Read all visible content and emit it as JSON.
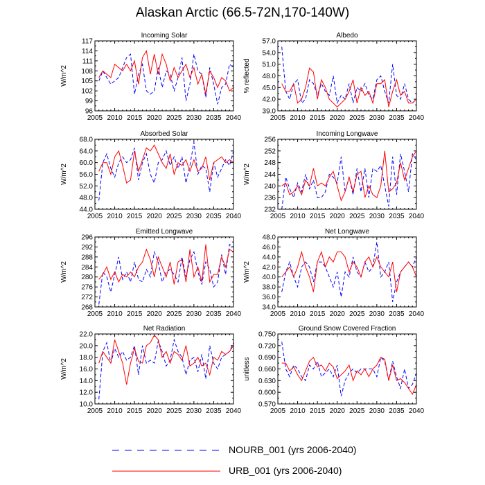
{
  "title": "Alaskan Arctic (66.5-72N,170-140W)",
  "legend": [
    {
      "name": "NOURB_001 (yrs 2006-2040)",
      "color": "#0000ff",
      "style": "dashed"
    },
    {
      "name": "URB_001 (yrs 2006-2040)",
      "color": "#ff0000",
      "style": "solid"
    }
  ],
  "chart_data": [
    {
      "type": "line",
      "title": "Incoming Solar",
      "ylabel": "W/m^2",
      "xlim": [
        2005,
        2040
      ],
      "ylim": [
        96,
        117
      ],
      "xticks": [
        "2005",
        "2010",
        "2015",
        "2020",
        "2025",
        "2030",
        "2035",
        "2040"
      ],
      "yticks": [
        "96",
        "99",
        "102",
        "105",
        "108",
        "111",
        "114",
        "117"
      ],
      "x": [
        2006,
        2007,
        2008,
        2009,
        2010,
        2011,
        2012,
        2013,
        2014,
        2015,
        2016,
        2017,
        2018,
        2019,
        2020,
        2021,
        2022,
        2023,
        2024,
        2025,
        2026,
        2027,
        2028,
        2029,
        2030,
        2031,
        2032,
        2033,
        2034,
        2035,
        2036,
        2037,
        2038,
        2039,
        2040
      ],
      "series": [
        {
          "name": "NOURB_001",
          "values": [
            105,
            108,
            106,
            104,
            105,
            106,
            109,
            112,
            113,
            101,
            107,
            110,
            102,
            101,
            102,
            109,
            103,
            108,
            107,
            102,
            106,
            112,
            99,
            104,
            113,
            108,
            107,
            100,
            109,
            104,
            98,
            103,
            104,
            110,
            109
          ]
        },
        {
          "name": "URB_001",
          "values": [
            106,
            108,
            107,
            106,
            110,
            109,
            108,
            110,
            108,
            111,
            104,
            112,
            114,
            107,
            113,
            107,
            113,
            110,
            105,
            109,
            106,
            108,
            110,
            106,
            109,
            104,
            107,
            101,
            108,
            106,
            103,
            106,
            105,
            102,
            103
          ]
        }
      ]
    },
    {
      "type": "line",
      "title": "Albedo",
      "ylabel": "% reflected",
      "xlim": [
        2005,
        2040
      ],
      "ylim": [
        39,
        57
      ],
      "xticks": [
        "2005",
        "2010",
        "2015",
        "2020",
        "2025",
        "2030",
        "2035",
        "2040"
      ],
      "yticks": [
        "39.0",
        "42.0",
        "45.0",
        "48.0",
        "51.0",
        "54.0",
        "57.0"
      ],
      "x": [
        2006,
        2007,
        2008,
        2009,
        2010,
        2011,
        2012,
        2013,
        2014,
        2015,
        2016,
        2017,
        2018,
        2019,
        2020,
        2021,
        2022,
        2023,
        2024,
        2025,
        2026,
        2027,
        2028,
        2029,
        2030,
        2031,
        2032,
        2033,
        2034,
        2035,
        2036,
        2037,
        2038,
        2039,
        2040
      ],
      "series": [
        {
          "name": "NOURB_001",
          "values": [
            55.5,
            44,
            42,
            46,
            47,
            41,
            42,
            47,
            46,
            43,
            46,
            44,
            43,
            48,
            41,
            43,
            42,
            46,
            41,
            45,
            44,
            46,
            43,
            42,
            47,
            48,
            44,
            41,
            51,
            43,
            42,
            46,
            42,
            41,
            42
          ]
        },
        {
          "name": "URB_001",
          "values": [
            46,
            44,
            44,
            46,
            41,
            42,
            45,
            50,
            49,
            42,
            47,
            45,
            42,
            41,
            40,
            41,
            42,
            44,
            47,
            41,
            45,
            43,
            44,
            41,
            46,
            46,
            47,
            40,
            44,
            47,
            43,
            44,
            41,
            41,
            42
          ]
        }
      ]
    },
    {
      "type": "line",
      "title": "Absorbed Solar",
      "ylabel": "W/m^2",
      "xlim": [
        2005,
        2040
      ],
      "ylim": [
        44,
        68
      ],
      "xticks": [
        "2005",
        "2010",
        "2015",
        "2020",
        "2025",
        "2030",
        "2035",
        "2040"
      ],
      "yticks": [
        "44.0",
        "48.0",
        "52.0",
        "56.0",
        "60.0",
        "64.0",
        "68.0"
      ],
      "x": [
        2006,
        2007,
        2008,
        2009,
        2010,
        2011,
        2012,
        2013,
        2014,
        2015,
        2016,
        2017,
        2018,
        2019,
        2020,
        2021,
        2022,
        2023,
        2024,
        2025,
        2026,
        2027,
        2028,
        2029,
        2030,
        2031,
        2032,
        2033,
        2034,
        2035,
        2036,
        2037,
        2038,
        2039,
        2040
      ],
      "series": [
        {
          "name": "NOURB_001",
          "values": [
            47,
            60,
            63,
            58,
            55,
            60,
            62,
            60,
            61,
            65,
            54,
            60,
            63,
            56,
            53,
            60,
            61,
            64,
            59,
            62,
            58,
            62,
            53,
            59,
            67,
            56,
            59,
            58,
            50,
            60,
            55,
            58,
            61,
            59,
            64
          ]
        },
        {
          "name": "URB_001",
          "values": [
            57,
            60,
            60,
            56,
            62,
            64,
            59,
            53,
            54,
            64,
            57,
            61,
            65,
            64,
            66,
            63,
            60,
            58,
            63,
            56,
            60,
            59,
            61,
            57,
            61,
            57,
            58,
            62,
            54,
            60,
            61,
            62,
            60,
            61,
            60
          ]
        }
      ]
    },
    {
      "type": "line",
      "title": "Incoming Longwave",
      "ylabel": "W/m^2",
      "xlim": [
        2005,
        2040
      ],
      "ylim": [
        232,
        256
      ],
      "xticks": [
        "2005",
        "2010",
        "2015",
        "2020",
        "2025",
        "2030",
        "2035",
        "2040"
      ],
      "yticks": [
        "232",
        "236",
        "240",
        "244",
        "248",
        "252",
        "256"
      ],
      "x": [
        2006,
        2007,
        2008,
        2009,
        2010,
        2011,
        2012,
        2013,
        2014,
        2015,
        2016,
        2017,
        2018,
        2019,
        2020,
        2021,
        2022,
        2023,
        2024,
        2025,
        2026,
        2027,
        2028,
        2029,
        2030,
        2031,
        2032,
        2033,
        2034,
        2035,
        2036,
        2037,
        2038,
        2039,
        2040
      ],
      "series": [
        {
          "name": "NOURB_001",
          "values": [
            232,
            243,
            239,
            236,
            241,
            238,
            244,
            239,
            242,
            236,
            236,
            238,
            244,
            243,
            241,
            250,
            238,
            243,
            237,
            246,
            238,
            246,
            236,
            246,
            245,
            247,
            240,
            233,
            250,
            237,
            251,
            245,
            238,
            251,
            249
          ]
        },
        {
          "name": "URB_001",
          "values": [
            240,
            241,
            237,
            238,
            240,
            237,
            242,
            240,
            246,
            240,
            241,
            240,
            243,
            245,
            240,
            235,
            238,
            243,
            238,
            244,
            245,
            236,
            240,
            237,
            236,
            240,
            252,
            238,
            239,
            241,
            248,
            242,
            246,
            250,
            252
          ]
        }
      ]
    },
    {
      "type": "line",
      "title": "Emitted Longwave",
      "ylabel": "W/m^2",
      "xlim": [
        2005,
        2040
      ],
      "ylim": [
        268,
        296
      ],
      "xticks": [
        "2005",
        "2010",
        "2015",
        "2020",
        "2025",
        "2030",
        "2035",
        "2040"
      ],
      "yticks": [
        "268",
        "272",
        "276",
        "280",
        "284",
        "288",
        "292",
        "296"
      ],
      "x": [
        2006,
        2007,
        2008,
        2009,
        2010,
        2011,
        2012,
        2013,
        2014,
        2015,
        2016,
        2017,
        2018,
        2019,
        2020,
        2021,
        2022,
        2023,
        2024,
        2025,
        2026,
        2027,
        2028,
        2029,
        2030,
        2031,
        2032,
        2033,
        2034,
        2035,
        2036,
        2037,
        2038,
        2039,
        2040
      ],
      "series": [
        {
          "name": "NOURB_001",
          "values": [
            269,
            282,
            280,
            274,
            281,
            288,
            279,
            282,
            278,
            286,
            279,
            278,
            283,
            280,
            290,
            286,
            278,
            282,
            283,
            281,
            278,
            288,
            280,
            287,
            290,
            282,
            277,
            286,
            283,
            276,
            278,
            289,
            281,
            293,
            292
          ]
        },
        {
          "name": "URB_001",
          "values": [
            279,
            281,
            284,
            279,
            282,
            278,
            281,
            280,
            282,
            280,
            284,
            286,
            291,
            287,
            280,
            288,
            284,
            280,
            286,
            277,
            286,
            287,
            278,
            291,
            280,
            284,
            278,
            293,
            278,
            281,
            281,
            288,
            284,
            291,
            290
          ]
        }
      ]
    },
    {
      "type": "line",
      "title": "Net Longwave",
      "ylabel": "W/m^2",
      "xlim": [
        2005,
        2040
      ],
      "ylim": [
        34,
        48
      ],
      "xticks": [
        "2005",
        "2010",
        "2015",
        "2020",
        "2025",
        "2030",
        "2035",
        "2040"
      ],
      "yticks": [
        "34.0",
        "36.0",
        "38.0",
        "40.0",
        "42.0",
        "44.0",
        "46.0",
        "48.0"
      ],
      "x": [
        2006,
        2007,
        2008,
        2009,
        2010,
        2011,
        2012,
        2013,
        2014,
        2015,
        2016,
        2017,
        2018,
        2019,
        2020,
        2021,
        2022,
        2023,
        2024,
        2025,
        2026,
        2027,
        2028,
        2029,
        2030,
        2031,
        2032,
        2033,
        2034,
        2035,
        2036,
        2037,
        2038,
        2039,
        2040
      ],
      "series": [
        {
          "name": "NOURB_001",
          "values": [
            37,
            41,
            43,
            40,
            38,
            42,
            43,
            42,
            39,
            43,
            43,
            42,
            40,
            38,
            41,
            36,
            41,
            40,
            44,
            41,
            40,
            43,
            41,
            42,
            47,
            40,
            41,
            43,
            35,
            39,
            41,
            42,
            43,
            42,
            44
          ]
        },
        {
          "name": "URB_001",
          "values": [
            40,
            41,
            42,
            40,
            42,
            45,
            42,
            40,
            37,
            43,
            45,
            42,
            44,
            43,
            45,
            45,
            44,
            41,
            43,
            42,
            40,
            43,
            44,
            42,
            44,
            42,
            41,
            40,
            43,
            37,
            41,
            42,
            43,
            42,
            40
          ]
        }
      ]
    },
    {
      "type": "line",
      "title": "Net Radiation",
      "ylabel": "W/m^2",
      "xlim": [
        2005,
        2040
      ],
      "ylim": [
        10,
        22
      ],
      "xticks": [
        "2005",
        "2010",
        "2015",
        "2020",
        "2025",
        "2030",
        "2035",
        "2040"
      ],
      "yticks": [
        "10.0",
        "12.0",
        "14.0",
        "16.0",
        "18.0",
        "20.0",
        "22.0"
      ],
      "x": [
        2006,
        2007,
        2008,
        2009,
        2010,
        2011,
        2012,
        2013,
        2014,
        2015,
        2016,
        2017,
        2018,
        2019,
        2020,
        2021,
        2022,
        2023,
        2024,
        2025,
        2026,
        2027,
        2028,
        2029,
        2030,
        2031,
        2032,
        2033,
        2034,
        2035,
        2036,
        2037,
        2038,
        2039,
        2040
      ],
      "series": [
        {
          "name": "NOURB_001",
          "values": [
            10.8,
            19,
            20.5,
            17,
            19.5,
            18,
            19,
            17.5,
            18,
            20,
            15,
            20,
            17,
            17.5,
            17,
            20.8,
            19,
            16.5,
            17.5,
            21,
            19,
            18,
            15,
            17.5,
            18,
            15.5,
            18.5,
            14.3,
            20,
            17,
            16,
            18,
            18.5,
            19,
            20.5
          ]
        },
        {
          "name": "URB_001",
          "values": [
            17,
            19,
            18,
            17,
            21,
            19,
            17,
            13.3,
            17,
            19.5,
            17.3,
            17,
            20,
            20.5,
            21.8,
            21,
            18,
            19,
            17,
            19,
            18.5,
            17.5,
            20,
            16.5,
            17,
            18,
            16.5,
            17,
            15,
            18,
            17.5,
            19,
            18.5,
            19,
            20
          ]
        }
      ]
    },
    {
      "type": "line",
      "title": "Ground Snow Covered Fraction",
      "ylabel": "unitless",
      "xlim": [
        2005,
        2040
      ],
      "ylim": [
        0.57,
        0.75
      ],
      "xticks": [
        "2005",
        "2010",
        "2015",
        "2020",
        "2025",
        "2030",
        "2035",
        "2040"
      ],
      "yticks": [
        "0.570",
        "0.600",
        "0.630",
        "0.660",
        "0.690",
        "0.720",
        "0.750"
      ],
      "x": [
        2006,
        2007,
        2008,
        2009,
        2010,
        2011,
        2012,
        2013,
        2014,
        2015,
        2016,
        2017,
        2018,
        2019,
        2020,
        2021,
        2022,
        2023,
        2024,
        2025,
        2026,
        2027,
        2028,
        2029,
        2030,
        2031,
        2032,
        2033,
        2034,
        2035,
        2036,
        2037,
        2038,
        2039,
        2040
      ],
      "series": [
        {
          "name": "NOURB_001",
          "values": [
            0.73,
            0.66,
            0.64,
            0.67,
            0.66,
            0.64,
            0.63,
            0.67,
            0.66,
            0.68,
            0.64,
            0.65,
            0.66,
            0.64,
            0.67,
            0.59,
            0.63,
            0.65,
            0.66,
            0.65,
            0.66,
            0.66,
            0.66,
            0.66,
            0.64,
            0.69,
            0.68,
            0.63,
            0.68,
            0.64,
            0.61,
            0.66,
            0.61,
            0.62,
            0.65
          ]
        },
        {
          "name": "URB_001",
          "values": [
            0.675,
            0.675,
            0.655,
            0.665,
            0.645,
            0.63,
            0.655,
            0.68,
            0.69,
            0.665,
            0.67,
            0.655,
            0.675,
            0.665,
            0.635,
            0.645,
            0.655,
            0.67,
            0.63,
            0.655,
            0.645,
            0.66,
            0.64,
            0.66,
            0.67,
            0.69,
            0.685,
            0.63,
            0.67,
            0.63,
            0.635,
            0.625,
            0.61,
            0.595,
            0.62
          ]
        }
      ]
    }
  ]
}
